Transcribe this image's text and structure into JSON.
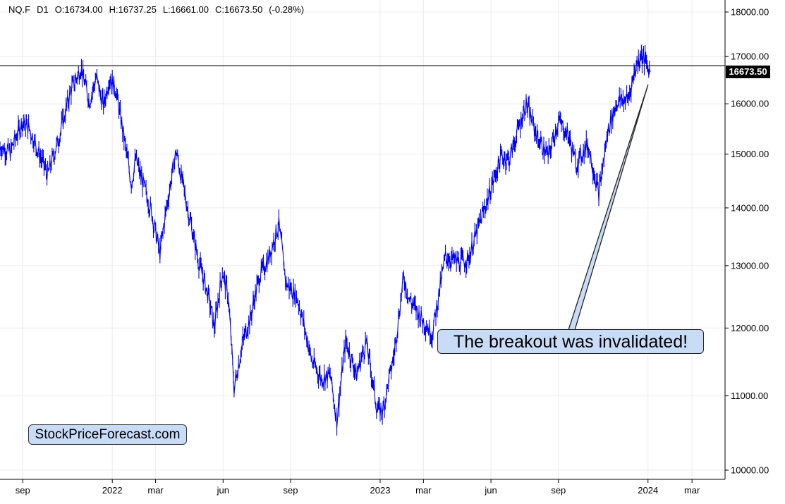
{
  "header": {
    "symbol": "NQ.F",
    "timeframe": "D1",
    "open": "O:16734.00",
    "high": "H:16737.25",
    "low": "L:16661.00",
    "close": "C:16673.50",
    "change": "(-0.28%)"
  },
  "annotation_text": "The breakout was invalidated!",
  "brand_text": "StockPriceForecast.com",
  "last_price_label": "16673.50",
  "colors": {
    "price_series": "#0000ff",
    "callout_fill": "#c9dcf7",
    "grid": "#ececec",
    "horizontal_line": "#000000"
  },
  "chart_data": {
    "type": "line",
    "symbol": "NQ.F",
    "interval": "D1",
    "y_scale": "log",
    "ylim": [
      9900,
      18200
    ],
    "y_ticks": [
      "18000.00",
      "17000.00",
      "16000.00",
      "15000.00",
      "14000.00",
      "13000.00",
      "12000.00",
      "11000.00",
      "10000.00"
    ],
    "y_tick_values": [
      18000,
      17000,
      16000,
      15000,
      14000,
      13000,
      12000,
      11000,
      10000
    ],
    "x_range": [
      "2021-08-01",
      "2024-04-15"
    ],
    "x_tick_labels": [
      "sep",
      "2022",
      "mar",
      "jun",
      "sep",
      "2023",
      "mar",
      "jun",
      "sep",
      "2024",
      "mar"
    ],
    "x_tick_dates": [
      "2021-09-01",
      "2022-01-01",
      "2022-03-01",
      "2022-06-01",
      "2022-09-01",
      "2023-01-01",
      "2023-03-01",
      "2023-06-01",
      "2023-09-01",
      "2024-01-01",
      "2024-03-01"
    ],
    "horizontal_line": 16800,
    "last_price": 16673.5,
    "series": [
      {
        "x": [
          "2021-08-01",
          "2021-08-15",
          "2021-09-01",
          "2021-09-10",
          "2021-09-25",
          "2021-10-05",
          "2021-10-20",
          "2021-11-05",
          "2021-11-19",
          "2021-12-01",
          "2021-12-10",
          "2021-12-20",
          "2021-12-28",
          "2022-01-05",
          "2022-01-27",
          "2022-02-02",
          "2022-02-24",
          "2022-03-07",
          "2022-03-14",
          "2022-03-29",
          "2022-04-12",
          "2022-04-28",
          "2022-05-12",
          "2022-05-20",
          "2022-05-31",
          "2022-06-08",
          "2022-06-16",
          "2022-06-28",
          "2022-07-08",
          "2022-07-20",
          "2022-08-01",
          "2022-08-16",
          "2022-08-26",
          "2022-09-06",
          "2022-09-12",
          "2022-09-30",
          "2022-10-13",
          "2022-10-25",
          "2022-11-03",
          "2022-11-15",
          "2022-11-30",
          "2022-12-13",
          "2022-12-28",
          "2023-01-05",
          "2023-01-20",
          "2023-02-02",
          "2023-02-10",
          "2023-03-13",
          "2023-03-31",
          "2023-04-20",
          "2023-05-01",
          "2023-05-26",
          "2023-06-15",
          "2023-06-26",
          "2023-07-19",
          "2023-08-04",
          "2023-08-18",
          "2023-09-01",
          "2023-09-15",
          "2023-09-25",
          "2023-10-11",
          "2023-10-26",
          "2023-11-08",
          "2023-11-20",
          "2023-12-05",
          "2023-12-14",
          "2023-12-22",
          "2023-12-28",
          "2024-01-02",
          "2024-01-04"
        ],
        "y": [
          15150,
          15050,
          15650,
          15500,
          14950,
          14600,
          15300,
          16250,
          16750,
          16050,
          16550,
          15950,
          16550,
          16350,
          14450,
          14900,
          13900,
          13200,
          13850,
          15050,
          14100,
          13100,
          12500,
          12000,
          12900,
          12500,
          11100,
          11800,
          12150,
          12800,
          13100,
          13700,
          12700,
          12550,
          12400,
          11500,
          11250,
          11300,
          10650,
          11800,
          11300,
          11800,
          10800,
          10800,
          11600,
          12800,
          12450,
          11900,
          13150,
          13050,
          13100,
          14100,
          14950,
          14900,
          16000,
          15300,
          14950,
          15650,
          15350,
          14800,
          15200,
          14250,
          15500,
          16050,
          16100,
          16700,
          17050,
          16900,
          16750,
          16673.5
        ]
      }
    ]
  }
}
